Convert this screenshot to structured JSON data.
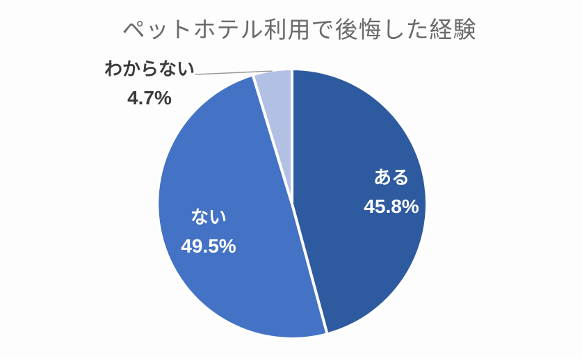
{
  "page": {
    "background_color": "#fdfdfd"
  },
  "chart_data": {
    "type": "pie",
    "title": "ペットホテル利用で後悔した経験",
    "title_color": "#6a6a6a",
    "categories": [
      "ある",
      "ない",
      "わからない"
    ],
    "values": [
      45.8,
      49.5,
      4.7
    ],
    "unit": "%",
    "colors": [
      "#2E5A9F",
      "#4472C4",
      "#B2C0E4"
    ],
    "slice_border_color": "#ffffff",
    "start_angle_deg": 0,
    "direction": "clockwise",
    "legend": "none",
    "labels": [
      {
        "name": "ある",
        "value_text": "45.8%",
        "placement": "inside",
        "text_color": "#ffffff"
      },
      {
        "name": "ない",
        "value_text": "49.5%",
        "placement": "inside",
        "text_color": "#ffffff"
      },
      {
        "name": "わからない",
        "value_text": "4.7%",
        "placement": "outside",
        "text_color": "#3b3b3b",
        "leader_line": true,
        "leader_line_color": "#999999"
      }
    ]
  }
}
